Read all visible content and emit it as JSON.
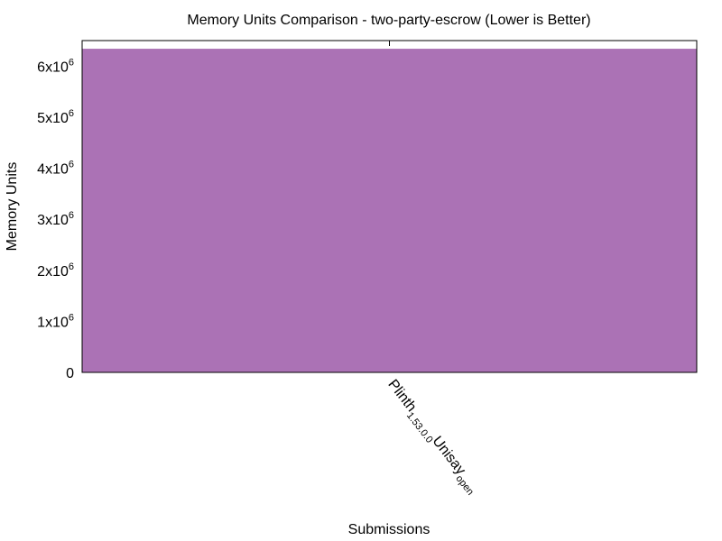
{
  "chart_data": {
    "type": "bar",
    "title": "Memory Units Comparison - two-party-escrow (Lower is Better)",
    "xlabel": "Submissions",
    "ylabel": "Memory Units",
    "categories": [
      "Plinth_1.53.0.0_Unisay_open"
    ],
    "category_display": {
      "base": "Plinth",
      "sub1": "1.53.0.0",
      "mid": "Unisay",
      "sub2": "open"
    },
    "values": [
      6340000
    ],
    "ylim": [
      0,
      6500000
    ],
    "yticks": [
      {
        "value": 0,
        "mantissa": "0",
        "exp": ""
      },
      {
        "value": 1000000,
        "mantissa": "1x10",
        "exp": "6"
      },
      {
        "value": 2000000,
        "mantissa": "2x10",
        "exp": "6"
      },
      {
        "value": 3000000,
        "mantissa": "3x10",
        "exp": "6"
      },
      {
        "value": 4000000,
        "mantissa": "4x10",
        "exp": "6"
      },
      {
        "value": 5000000,
        "mantissa": "5x10",
        "exp": "6"
      },
      {
        "value": 6000000,
        "mantissa": "6x10",
        "exp": "6"
      }
    ],
    "bar_color": "#ab72b5",
    "grid": false,
    "legend": "none"
  }
}
